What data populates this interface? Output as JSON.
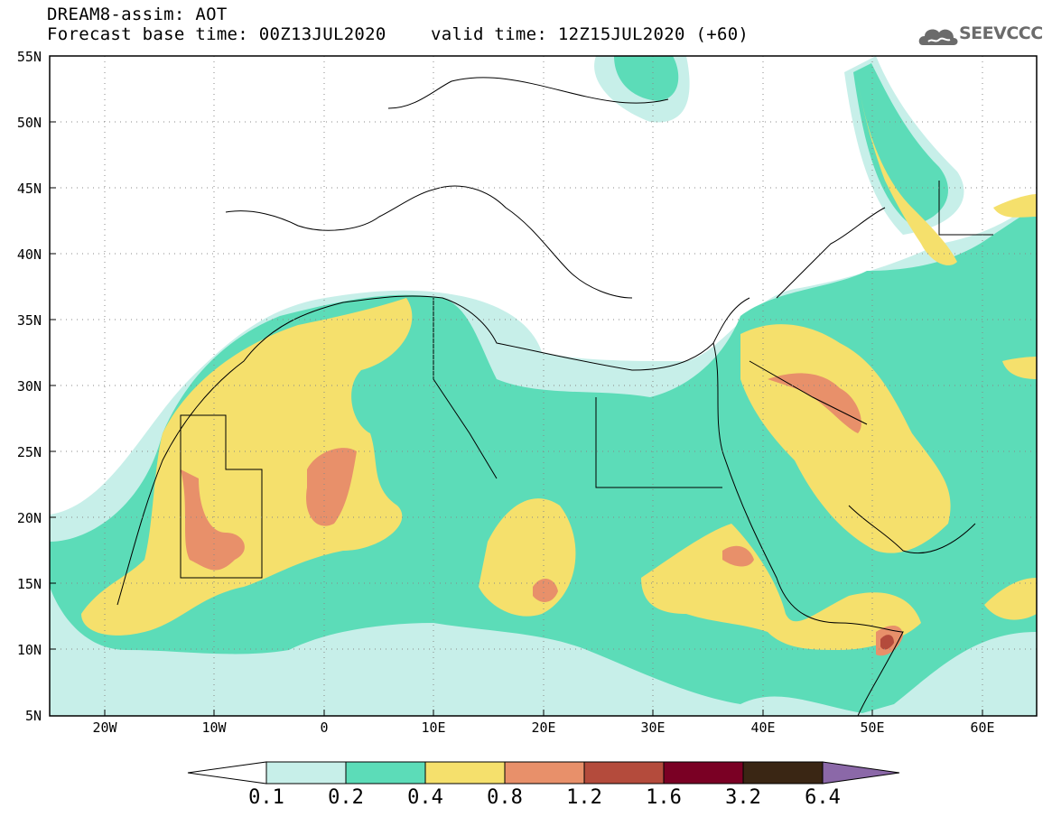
{
  "header": {
    "title": "DREAM8-assim: AOT",
    "base_time": "Forecast base time: 00Z13JUL2020",
    "valid_time": "valid time: 12Z15JUL2020 (+60)"
  },
  "logo": {
    "text": "SEEVCCC",
    "icon": "cloud-icon"
  },
  "map": {
    "lat_labels": [
      "55N",
      "50N",
      "45N",
      "40N",
      "35N",
      "30N",
      "25N",
      "20N",
      "15N",
      "10N",
      "5N"
    ],
    "lon_labels": [
      "20W",
      "10W",
      "0",
      "10E",
      "20E",
      "30E",
      "40E",
      "50E",
      "60E"
    ],
    "lat_range": [
      5,
      55
    ],
    "lon_range": [
      -25,
      65
    ],
    "colors": {
      "c01": "#c7efe9",
      "c02": "#5cdcb8",
      "c04": "#f5e06c",
      "c08": "#e8906a",
      "c12": "#b44b3c",
      "c16": "#7a0024",
      "c32": "#3a2614",
      "c64": "#8b68a8"
    }
  },
  "colorbar": {
    "levels": [
      "0.1",
      "0.2",
      "0.4",
      "0.8",
      "1.2",
      "1.6",
      "3.2",
      "6.4"
    ],
    "colors": [
      "#c7efe9",
      "#5cdcb8",
      "#f5e06c",
      "#e8906a",
      "#b44b3c",
      "#7a0024",
      "#3a2614"
    ],
    "over_color": "#8b68a8",
    "under_color": "#ffffff"
  }
}
